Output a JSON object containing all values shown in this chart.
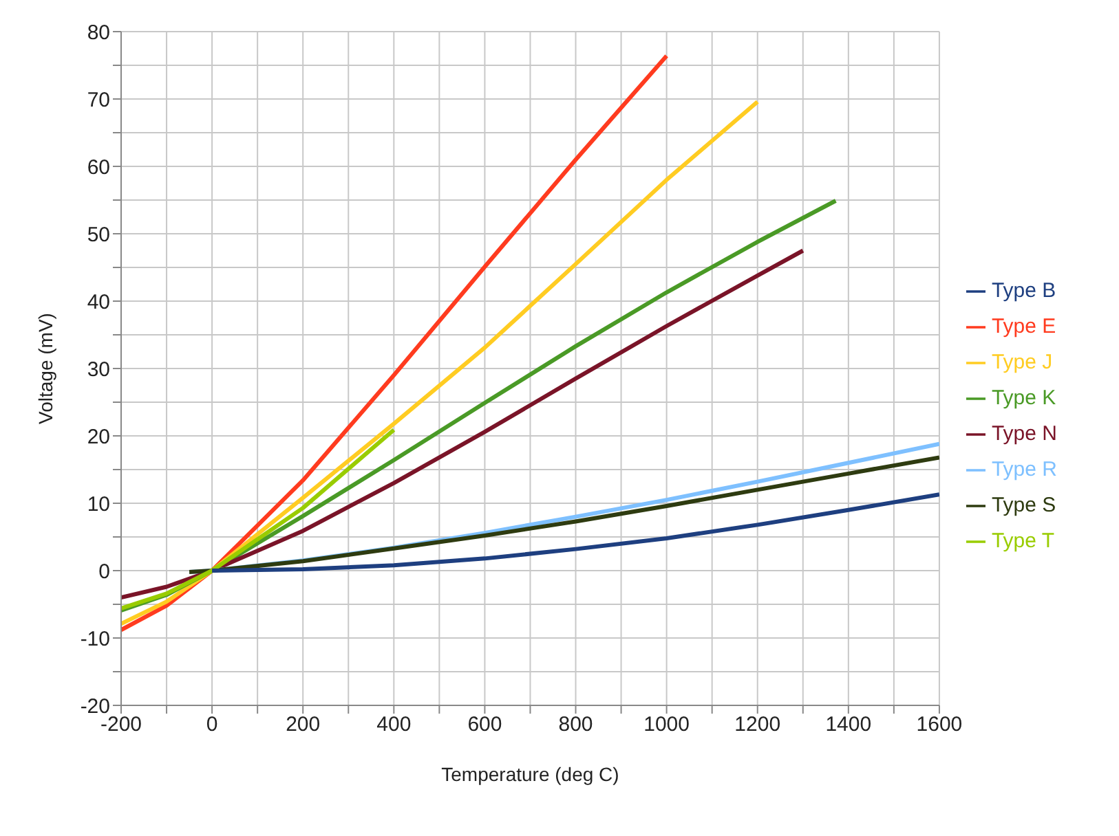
{
  "chart_data": {
    "type": "line",
    "xlabel": "Temperature (deg C)",
    "ylabel": "Voltage (mV)",
    "xlim": [
      -200,
      1600
    ],
    "ylim": [
      -20,
      80
    ],
    "xticks": [
      -200,
      {
        "value": -100,
        "label": null
      },
      0,
      {
        "value": 100,
        "label": null
      },
      200,
      {
        "value": 300,
        "label": null
      },
      400,
      {
        "value": 500,
        "label": null
      },
      600,
      {
        "value": 700,
        "label": null
      },
      800,
      {
        "value": 900,
        "label": null
      },
      1000,
      {
        "value": 1100,
        "label": null
      },
      1200,
      {
        "value": 1300,
        "label": null
      },
      1400,
      {
        "value": 1500,
        "label": null
      },
      1600
    ],
    "yticks": [
      -20,
      {
        "value": -15,
        "label": null
      },
      -10,
      {
        "value": -5,
        "label": null
      },
      0,
      {
        "value": 5,
        "label": null
      },
      10,
      {
        "value": 15,
        "label": null
      },
      20,
      {
        "value": 25,
        "label": null
      },
      30,
      {
        "value": 35,
        "label": null
      },
      40,
      {
        "value": 45,
        "label": null
      },
      50,
      {
        "value": 55,
        "label": null
      },
      60,
      {
        "value": 65,
        "label": null
      },
      70,
      {
        "value": 75,
        "label": null
      },
      80
    ],
    "grid": true,
    "legend": "right",
    "marker": "none",
    "line_style": "solid",
    "series": [
      {
        "name": "Type E",
        "color": "#ff3b1f",
        "x": [
          -200,
          -100,
          0,
          200,
          400,
          600,
          800,
          1000
        ],
        "values": [
          -8.8,
          -5.2,
          0,
          13.4,
          29.0,
          45.1,
          61.0,
          76.4
        ]
      },
      {
        "name": "Type J",
        "color": "#ffcc22",
        "x": [
          -200,
          -100,
          0,
          200,
          400,
          600,
          800,
          1000,
          1200
        ],
        "values": [
          -7.9,
          -4.6,
          0,
          10.8,
          21.8,
          33.1,
          45.5,
          58.0,
          69.6
        ]
      },
      {
        "name": "Type K",
        "color": "#4a9a26",
        "x": [
          -200,
          -100,
          0,
          200,
          400,
          600,
          800,
          1000,
          1200,
          1372
        ],
        "values": [
          -5.9,
          -3.6,
          0,
          8.1,
          16.4,
          24.9,
          33.3,
          41.3,
          48.8,
          54.9
        ]
      },
      {
        "name": "Type N",
        "color": "#7a1428",
        "x": [
          -200,
          -100,
          0,
          200,
          400,
          600,
          800,
          1000,
          1200,
          1300
        ],
        "values": [
          -4.0,
          -2.4,
          0,
          5.9,
          13.0,
          20.6,
          28.5,
          36.3,
          43.8,
          47.5
        ]
      },
      {
        "name": "Type R",
        "color": "#7ec0ff",
        "x": [
          -50,
          0,
          200,
          400,
          600,
          800,
          1000,
          1200,
          1400,
          1600
        ],
        "values": [
          -0.2,
          0,
          1.5,
          3.4,
          5.6,
          8.0,
          10.5,
          13.2,
          16.0,
          18.8
        ]
      },
      {
        "name": "Type S",
        "color": "#2e3b10",
        "x": [
          -50,
          0,
          200,
          400,
          600,
          800,
          1000,
          1200,
          1400,
          1600
        ],
        "values": [
          -0.2,
          0,
          1.4,
          3.3,
          5.2,
          7.3,
          9.6,
          12.0,
          14.4,
          16.8
        ]
      },
      {
        "name": "Type T",
        "color": "#99cc00",
        "x": [
          -200,
          -100,
          0,
          200,
          400
        ],
        "values": [
          -5.6,
          -3.4,
          0,
          9.3,
          20.9
        ]
      },
      {
        "name": "Type B",
        "color": "#1e3f80",
        "x": [
          0,
          200,
          400,
          600,
          800,
          1000,
          1200,
          1400,
          1600
        ],
        "values": [
          0,
          0.2,
          0.8,
          1.8,
          3.2,
          4.8,
          6.8,
          9.0,
          11.3
        ]
      }
    ]
  }
}
